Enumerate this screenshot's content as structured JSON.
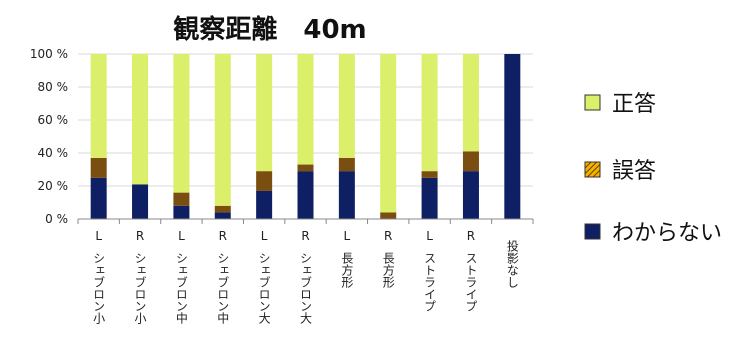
{
  "chart_data": {
    "type": "bar",
    "stacked": true,
    "title": "観察距離　40m",
    "y_tick_labels": [
      "0 %",
      "20 %",
      "40 %",
      "60 %",
      "80 %",
      "100 %"
    ],
    "ylim": [
      0,
      100
    ],
    "grid": true,
    "legend_position": "right",
    "categories": [
      {
        "top": "L",
        "label": "シェブロン小"
      },
      {
        "top": "R",
        "label": "シェブロン小"
      },
      {
        "top": "L",
        "label": "シェブロン中"
      },
      {
        "top": "R",
        "label": "シェブロン中"
      },
      {
        "top": "L",
        "label": "シェブロン大"
      },
      {
        "top": "R",
        "label": "シェブロン大"
      },
      {
        "top": "L",
        "label": "長方形"
      },
      {
        "top": "R",
        "label": "長方形"
      },
      {
        "top": "L",
        "label": "ストライプ"
      },
      {
        "top": "R",
        "label": "ストライプ"
      },
      {
        "top": "",
        "label": "投影なし"
      }
    ],
    "series": [
      {
        "name": "わからない",
        "color": "#0f1f63",
        "values": [
          25,
          21,
          8,
          4,
          17,
          29,
          29,
          0,
          25,
          29,
          100
        ]
      },
      {
        "name": "誤答",
        "color": "#7a4d10",
        "values": [
          12,
          0,
          8,
          4,
          12,
          4,
          8,
          4,
          4,
          12,
          0
        ]
      },
      {
        "name": "正答",
        "color": "#dbef6a",
        "values": [
          63,
          79,
          84,
          92,
          71,
          67,
          63,
          96,
          71,
          59,
          0
        ]
      }
    ],
    "legend_order": [
      "正答",
      "誤答",
      "わからない"
    ]
  }
}
